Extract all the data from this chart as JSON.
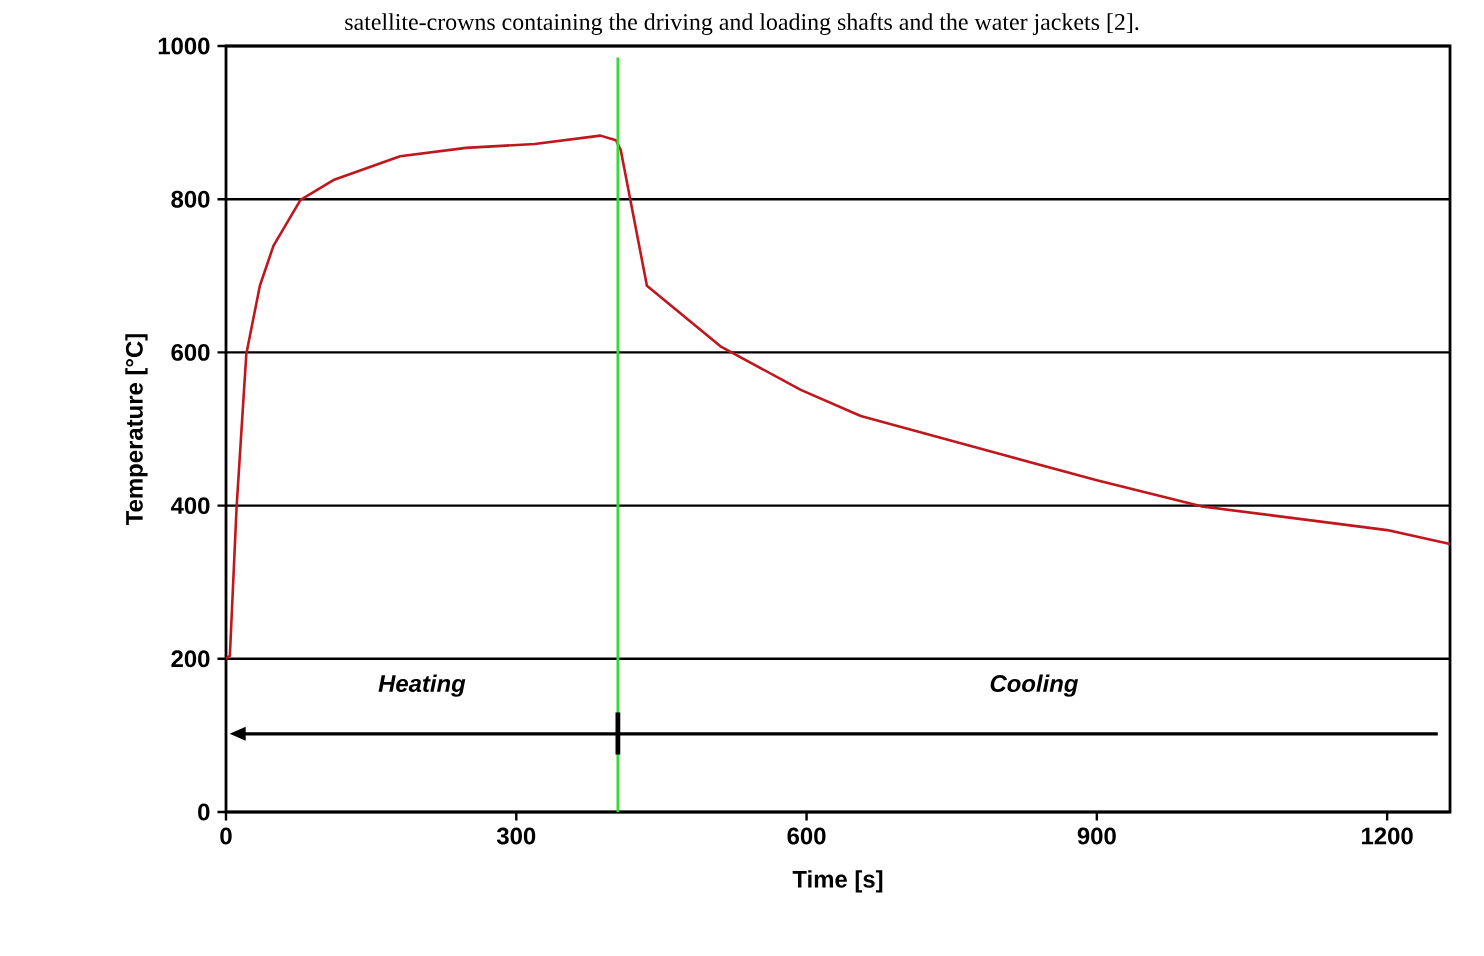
{
  "chart_data": {
    "type": "line",
    "xlabel": "Time [s]",
    "ylabel": "Temperature [°C]",
    "x": [
      0,
      4,
      11,
      21,
      35,
      49,
      77,
      111,
      180,
      248,
      319,
      387,
      403,
      408,
      435,
      511,
      594,
      656,
      801,
      900,
      1008,
      1200,
      1265
    ],
    "series": [
      {
        "color": "#c0161d",
        "values": [
          200,
          204,
          399,
          598,
          687,
          739,
          799,
          825,
          856,
          867,
          872,
          883,
          877,
          864,
          687,
          608,
          551,
          517,
          467,
          433,
          399,
          368,
          350
        ]
      }
    ],
    "xlim": [
      0,
      1265
    ],
    "ylim": [
      0,
      1000
    ],
    "xticks": [
      0,
      300,
      600,
      900,
      1200
    ],
    "yticks": [
      0,
      200,
      400,
      600,
      800,
      1000
    ],
    "grid": "y",
    "ref_lines": [
      {
        "axis": "x",
        "value": 405,
        "color": "#33dd33"
      }
    ],
    "annotations": [
      "satellite-crowns containing the driving and loading shafts and the water jackets [2].",
      "Heating",
      "Cooling"
    ]
  }
}
